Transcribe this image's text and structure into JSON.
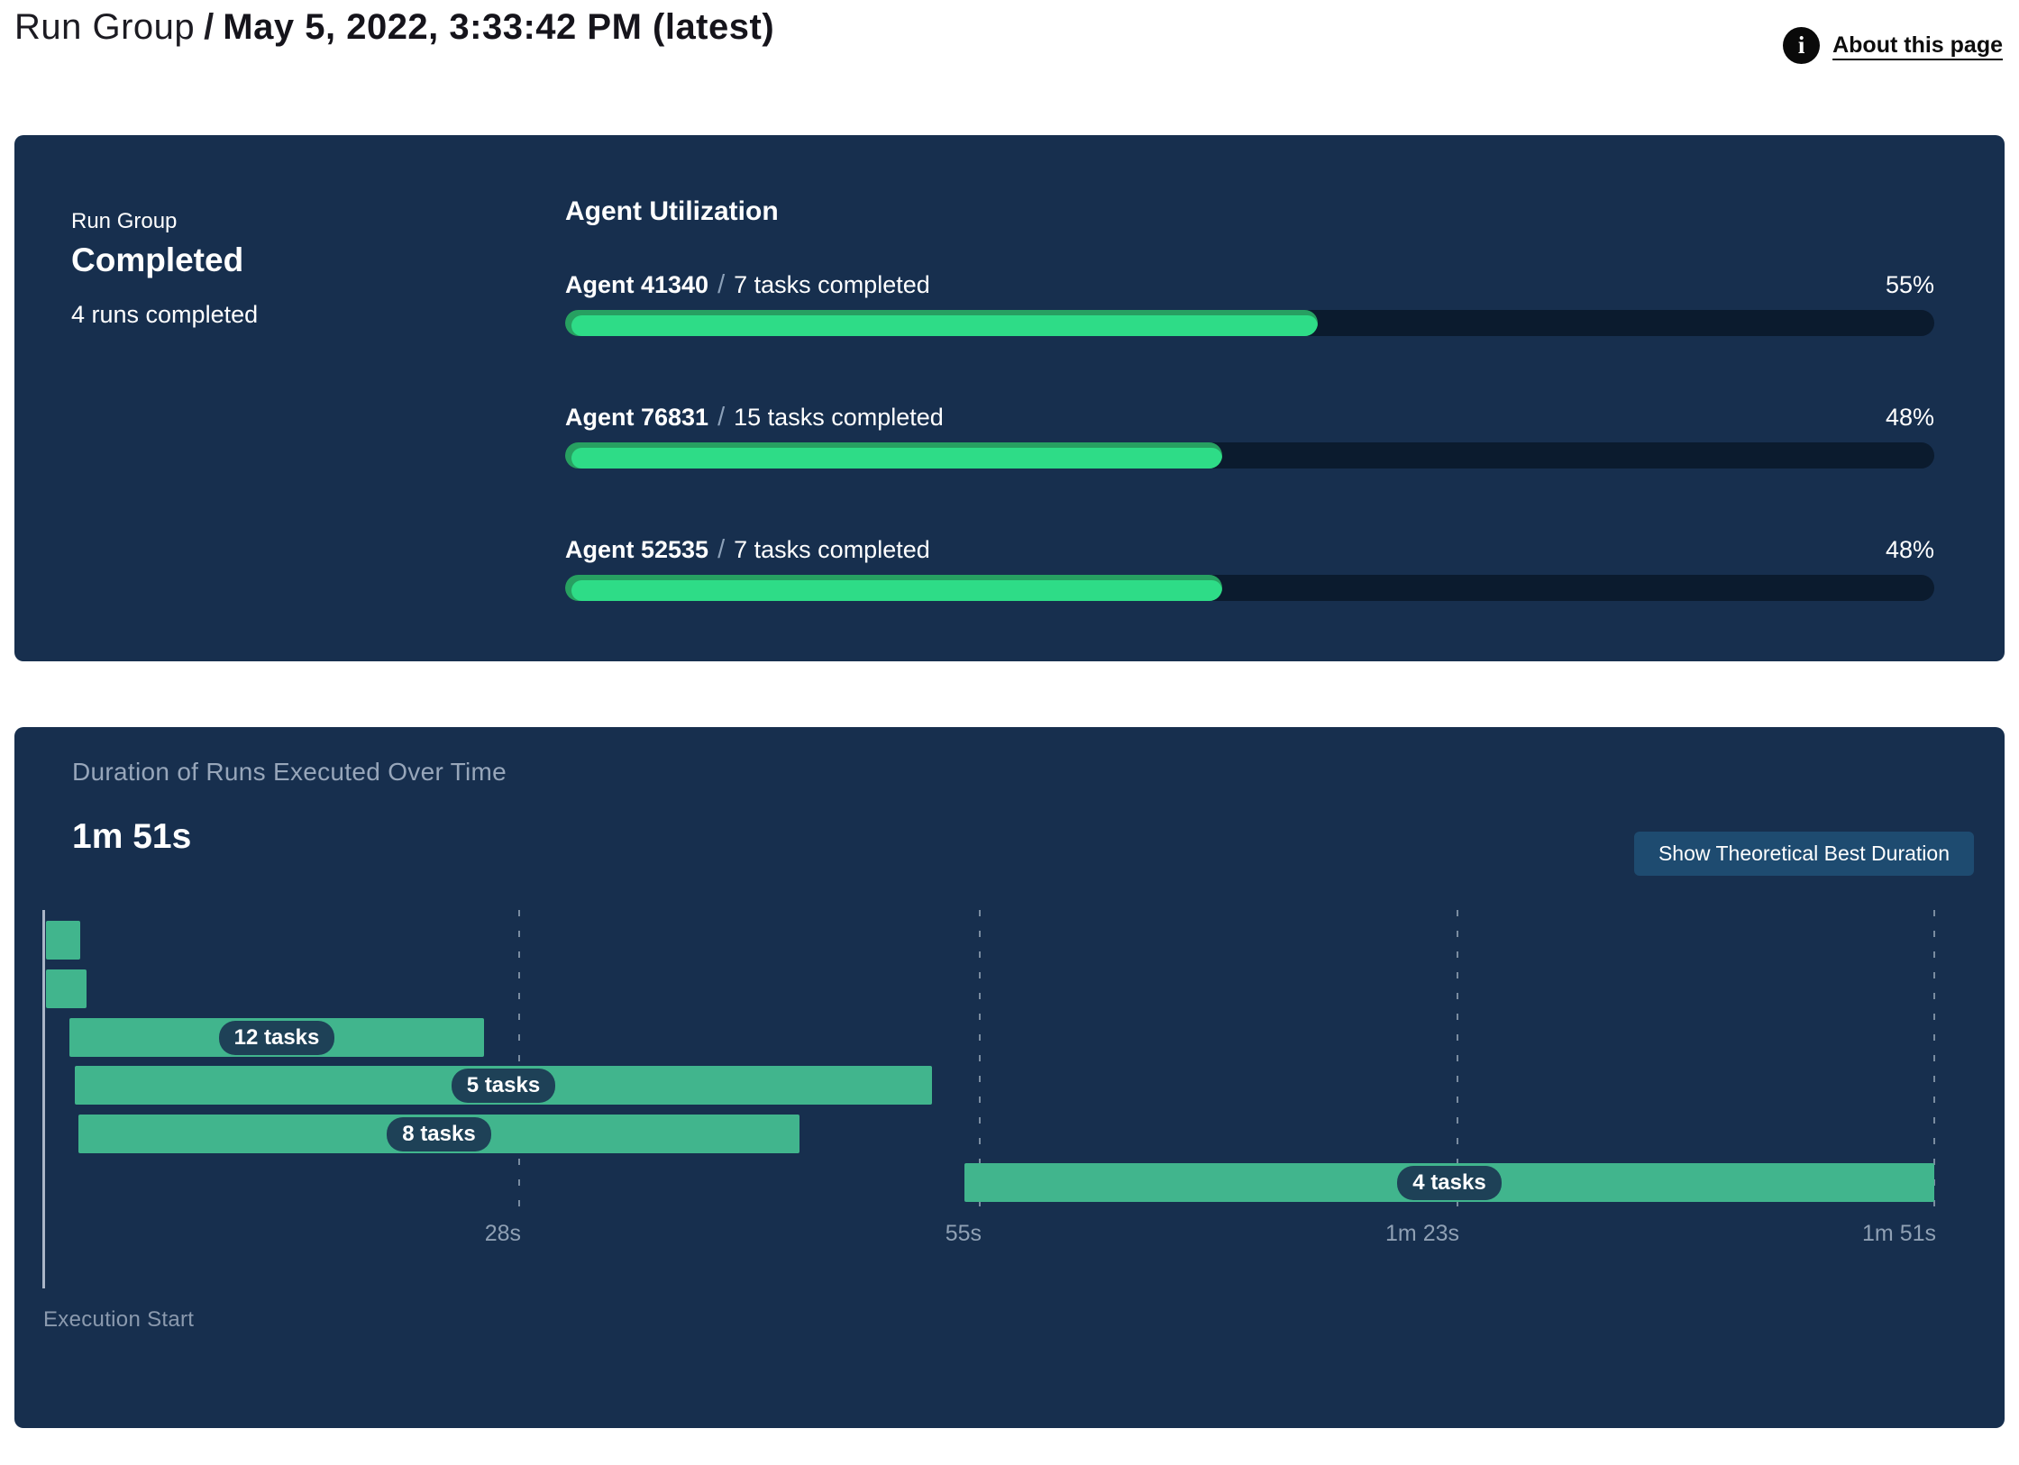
{
  "header": {
    "breadcrumb_root": "Run Group",
    "breadcrumb_separator": "/",
    "title": "May 5, 2022, 3:33:42 PM (latest)",
    "about_link": "About this page",
    "info_icon_glyph": "i"
  },
  "colors": {
    "accent_purple": "#7352e8",
    "panel_navy": "#172f4e",
    "progress_track": "#0b1b2e",
    "progress_fill": "#2edc87",
    "progress_fill_shade": "#27a061",
    "gantt_green": "#41b58d",
    "badge_navy": "#1e4157",
    "button_navy": "#1e4b70",
    "muted_text": "#8fa0b4"
  },
  "summary_panel": {
    "group_label": "Run Group",
    "status": "Completed",
    "runs_completed": "4 runs completed",
    "utilization_heading": "Agent Utilization",
    "separator": "/",
    "agents": [
      {
        "name": "Agent 41340",
        "tasks": "7 tasks completed",
        "percent": 55,
        "percent_label": "55%"
      },
      {
        "name": "Agent 76831",
        "tasks": "15 tasks completed",
        "percent": 48,
        "percent_label": "48%"
      },
      {
        "name": "Agent 52535",
        "tasks": "7 tasks completed",
        "percent": 48,
        "percent_label": "48%"
      }
    ]
  },
  "duration_panel": {
    "title": "Duration of Runs Executed Over Time",
    "total_duration": "1m 51s",
    "button_label": "Show Theoretical Best Duration",
    "execution_start_label": "Execution Start"
  },
  "chart_data": [
    {
      "type": "bar",
      "title": "Agent Utilization",
      "categories": [
        "Agent 41340",
        "Agent 76831",
        "Agent 52535"
      ],
      "values": [
        55,
        48,
        48
      ],
      "unit": "%",
      "annotations": [
        "7 tasks completed",
        "15 tasks completed",
        "7 tasks completed"
      ],
      "xlim": [
        0,
        100
      ],
      "orientation": "horizontal"
    },
    {
      "type": "bar",
      "subtype": "gantt-timeline",
      "title": "Duration of Runs Executed Over Time",
      "total_duration_label": "1m 51s",
      "xlabel": "Execution Start",
      "xlim_seconds": [
        0,
        111
      ],
      "x_ticks": [
        {
          "label": "28s",
          "seconds": 28
        },
        {
          "label": "55s",
          "seconds": 55
        },
        {
          "label": "1m 23s",
          "seconds": 83
        },
        {
          "label": "1m 51s",
          "seconds": 111
        }
      ],
      "runs": [
        {
          "label": "",
          "start_s": 0.2,
          "end_s": 2.2
        },
        {
          "label": "",
          "start_s": 0.2,
          "end_s": 2.6
        },
        {
          "label": "12 tasks",
          "start_s": 1.6,
          "end_s": 25.9
        },
        {
          "label": "5 tasks",
          "start_s": 1.9,
          "end_s": 52.2
        },
        {
          "label": "8 tasks",
          "start_s": 2.1,
          "end_s": 44.4
        },
        {
          "label": "4 tasks",
          "start_s": 54.1,
          "end_s": 111
        }
      ],
      "grid": "dashed-vertical",
      "legend": "none"
    }
  ]
}
